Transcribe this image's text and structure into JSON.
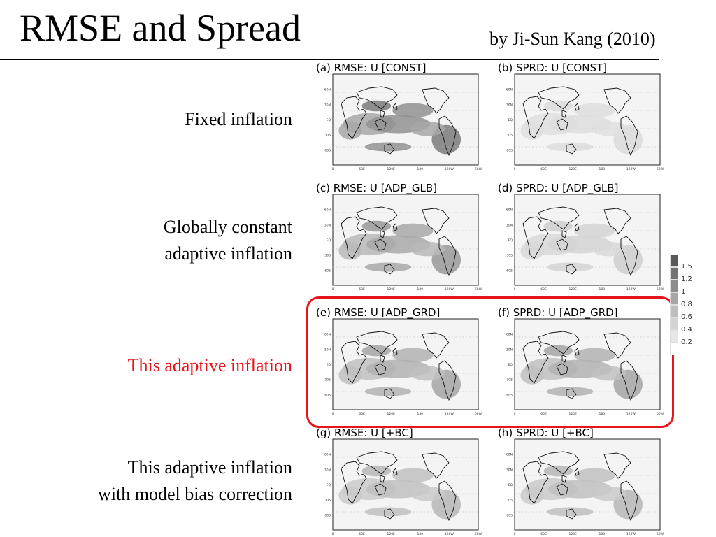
{
  "header": {
    "title": "RMSE and Spread",
    "byline": "by Ji-Sun Kang (2010)"
  },
  "rows": [
    {
      "label_lines": [
        "Fixed inflation"
      ],
      "highlight": false,
      "left": {
        "title": "(a) RMSE: U [CONST]",
        "intensity": 0.9
      },
      "right": {
        "title": "(b) SPRD: U [CONST]",
        "intensity": 0.1
      }
    },
    {
      "label_lines": [
        "Globally constant",
        "adaptive inflation"
      ],
      "highlight": false,
      "left": {
        "title": "(c) RMSE: U [ADP_GLB]",
        "intensity": 0.65
      },
      "right": {
        "title": "(d) SPRD: U [ADP_GLB]",
        "intensity": 0.2
      }
    },
    {
      "label_lines": [
        "This adaptive inflation"
      ],
      "highlight": true,
      "left": {
        "title": "(e) RMSE: U [ADP_GRD]",
        "intensity": 0.55
      },
      "right": {
        "title": "(f) SPRD: U [ADP_GRD]",
        "intensity": 0.55
      }
    },
    {
      "label_lines": [
        "This adaptive inflation",
        "with model bias correction"
      ],
      "highlight": false,
      "left": {
        "title": "(g) RMSE: U [+BC]",
        "intensity": 0.4
      },
      "right": {
        "title": "(h) SPRD: U [+BC]",
        "intensity": 0.4
      }
    }
  ],
  "map_axes": {
    "lat_ticks": [
      "60N",
      "30N",
      "EQ",
      "30S",
      "60S"
    ],
    "lon_ticks": [
      "0",
      "60E",
      "120E",
      "180",
      "120W",
      "60W"
    ]
  },
  "colorbar": {
    "labels": [
      "1.5",
      "1.2",
      "1",
      "0.8",
      "0.6",
      "0.4",
      "0.2"
    ],
    "colors": [
      "#5a5a5a",
      "#737373",
      "#8c8c8c",
      "#a6a6a6",
      "#bdbdbd",
      "#d3d3d3",
      "#e6e6e6",
      "#ffffff"
    ]
  },
  "colors": {
    "highlight": "#e8141c"
  }
}
